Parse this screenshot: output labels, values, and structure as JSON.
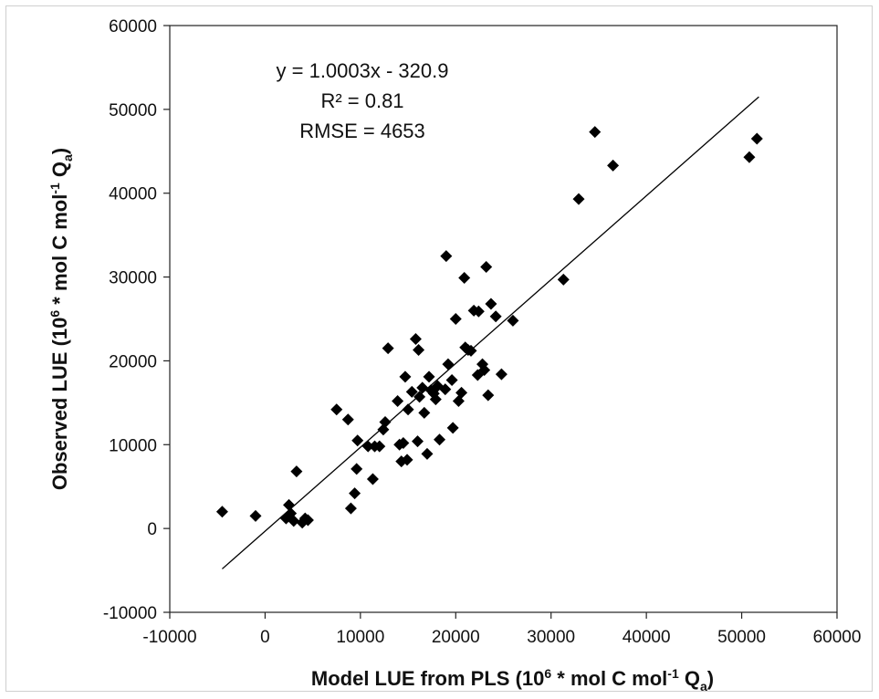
{
  "chart_data": {
    "type": "scatter",
    "title": "",
    "xlabel": {
      "parts": [
        "Model LUE from PLS (10",
        "6",
        " * mol C mol",
        "-1",
        " Q",
        "a",
        ")"
      ]
    },
    "ylabel": {
      "parts": [
        "Observed LUE (10",
        "6",
        " * mol C mol",
        "-1",
        " Q",
        "a",
        ")"
      ]
    },
    "xlim": [
      -10000,
      60000
    ],
    "ylim": [
      -10000,
      60000
    ],
    "xticks": [
      "-10000",
      "0",
      "10000",
      "20000",
      "30000",
      "40000",
      "50000",
      "60000"
    ],
    "yticks": [
      "-10000",
      "0",
      "10000",
      "20000",
      "30000",
      "40000",
      "50000",
      "60000"
    ],
    "grid": false,
    "annotations": [
      "y = 1.0003x - 320.9",
      "R² = 0.81",
      "RMSE = 4653"
    ],
    "trendline": {
      "slope": 1.0003,
      "intercept": -320.9,
      "x_range": [
        -4500,
        51800
      ]
    },
    "marker": "diamond",
    "marker_color": "#000000",
    "points": [
      [
        -4500,
        2000
      ],
      [
        -1000,
        1500
      ],
      [
        2200,
        1200
      ],
      [
        2500,
        2800
      ],
      [
        2700,
        1800
      ],
      [
        3000,
        900
      ],
      [
        3300,
        6800
      ],
      [
        3900,
        700
      ],
      [
        4200,
        1200
      ],
      [
        4500,
        1000
      ],
      [
        7500,
        14200
      ],
      [
        8700,
        13000
      ],
      [
        9000,
        2400
      ],
      [
        9400,
        4200
      ],
      [
        9600,
        7100
      ],
      [
        9700,
        10500
      ],
      [
        10800,
        9800
      ],
      [
        11300,
        5900
      ],
      [
        11500,
        9800
      ],
      [
        12000,
        9800
      ],
      [
        12400,
        11800
      ],
      [
        12600,
        12700
      ],
      [
        12900,
        21500
      ],
      [
        13900,
        15200
      ],
      [
        14100,
        10000
      ],
      [
        14300,
        8000
      ],
      [
        14500,
        10200
      ],
      [
        14700,
        18100
      ],
      [
        14900,
        8200
      ],
      [
        15000,
        14200
      ],
      [
        15400,
        16300
      ],
      [
        15800,
        22600
      ],
      [
        16000,
        10400
      ],
      [
        16100,
        21300
      ],
      [
        16200,
        15700
      ],
      [
        16500,
        16800
      ],
      [
        16700,
        13800
      ],
      [
        17000,
        8900
      ],
      [
        17200,
        18100
      ],
      [
        17400,
        16500
      ],
      [
        17700,
        16100
      ],
      [
        17900,
        15400
      ],
      [
        18100,
        17000
      ],
      [
        18300,
        10600
      ],
      [
        18900,
        16600
      ],
      [
        19000,
        32500
      ],
      [
        19200,
        19600
      ],
      [
        19600,
        17700
      ],
      [
        19700,
        12000
      ],
      [
        20000,
        25000
      ],
      [
        20300,
        15200
      ],
      [
        20600,
        16200
      ],
      [
        20900,
        29900
      ],
      [
        21000,
        21600
      ],
      [
        21300,
        21300
      ],
      [
        21600,
        21200
      ],
      [
        21900,
        26000
      ],
      [
        22400,
        25900
      ],
      [
        22300,
        18300
      ],
      [
        22800,
        19600
      ],
      [
        23000,
        18900
      ],
      [
        23200,
        31200
      ],
      [
        23400,
        15900
      ],
      [
        23700,
        26800
      ],
      [
        24200,
        25300
      ],
      [
        24800,
        18400
      ],
      [
        26000,
        24800
      ],
      [
        31300,
        29700
      ],
      [
        32900,
        39300
      ],
      [
        34600,
        47300
      ],
      [
        36500,
        43300
      ],
      [
        50800,
        44300
      ],
      [
        51600,
        46500
      ]
    ]
  }
}
